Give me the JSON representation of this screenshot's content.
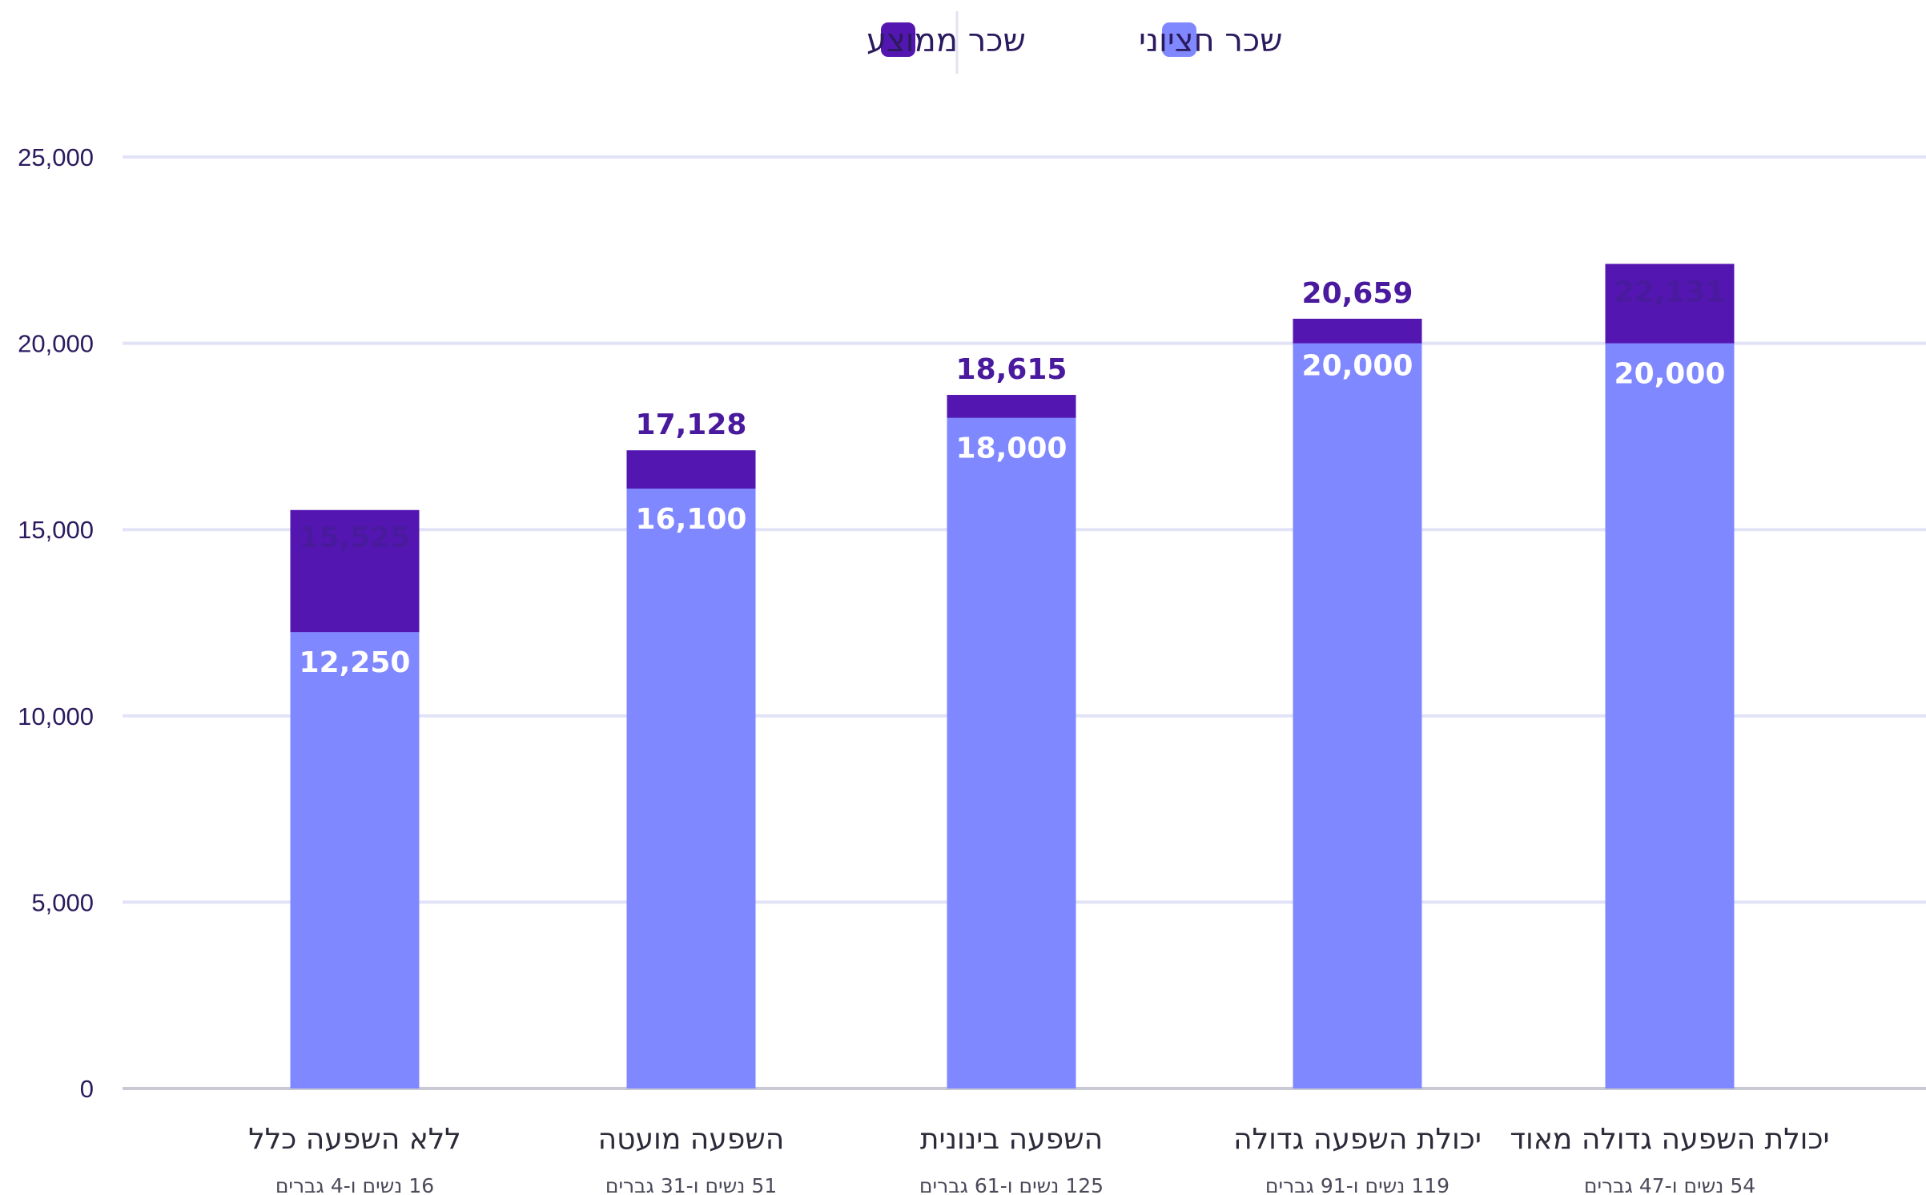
{
  "colors": {
    "median": "#8088ff",
    "mean": "#5416b0",
    "grid": "#e2e3f7",
    "axis": "#c9c9d4",
    "tick_text": "#2b1a5e",
    "mean_label": "#4a1a9e"
  },
  "legend": {
    "median_label": "שכר חציוני",
    "mean_label": "שכר ממוצע"
  },
  "chart_data": {
    "type": "bar",
    "stacked_overlay": true,
    "categories": [
      "ללא השפעה כלל",
      "השפעה מועטה",
      "השפעה בינונית",
      "יכולת השפעה גדולה",
      "יכולת השפעה גדולה מאוד"
    ],
    "category_subtitles": [
      "16 נשים ו-4 גברים",
      "51 נשים ו-31 גברים",
      "125 נשים ו-61 גברים",
      "119 נשים ו-91 גברים",
      "54 נשים ו-47 גברים"
    ],
    "series": [
      {
        "name": "שכר חציוני",
        "key": "median",
        "values": [
          12250,
          16100,
          18000,
          20000,
          20000
        ],
        "labels": [
          "12,250",
          "16,100",
          "18,000",
          "20,000",
          "20,000"
        ]
      },
      {
        "name": "שכר ממוצע",
        "key": "mean",
        "values": [
          15525,
          17128,
          18615,
          20659,
          22131
        ],
        "labels": [
          "15,525",
          "17,128",
          "18,615",
          "20,659",
          "22,131"
        ]
      }
    ],
    "y_ticks": [
      0,
      5000,
      10000,
      15000,
      20000,
      25000
    ],
    "y_tick_labels": [
      "0",
      "5,000",
      "10,000",
      "15,000",
      "20,000",
      "25,000"
    ],
    "ylim": [
      0,
      25000
    ],
    "grid": true,
    "legend_position": "top-center"
  }
}
